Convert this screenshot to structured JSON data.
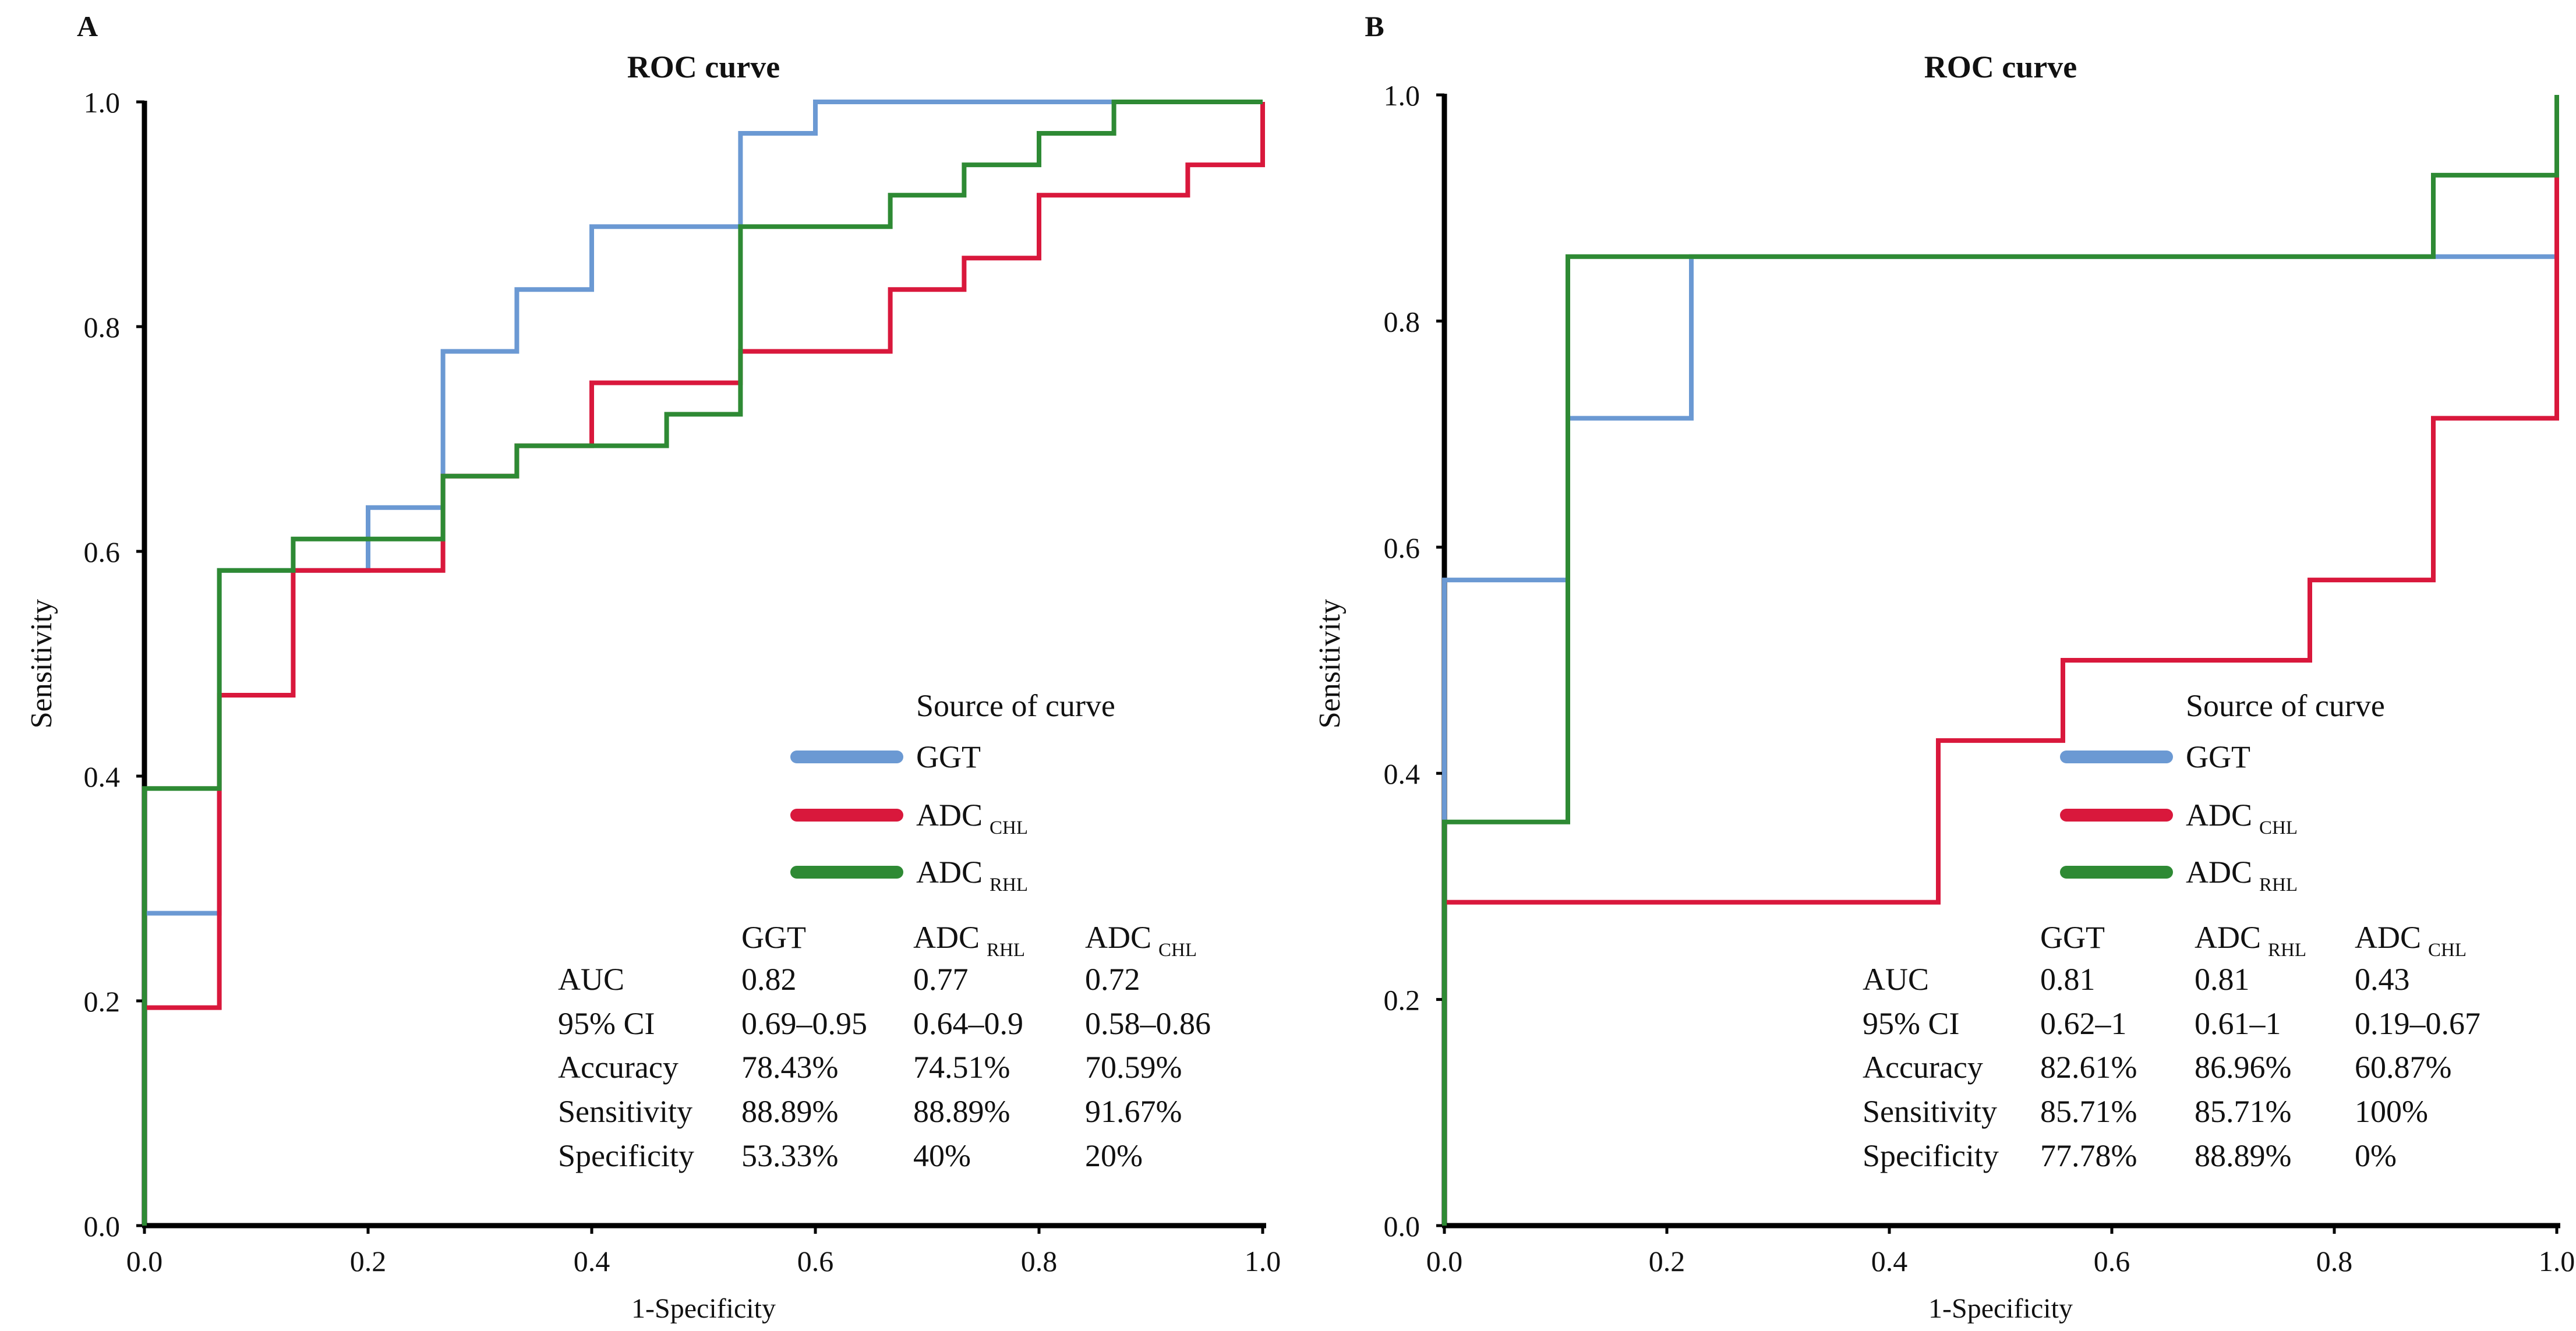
{
  "chart_data": [
    {
      "panel": "A",
      "type": "line",
      "title": "ROC curve",
      "xlabel": "1-Specificity",
      "ylabel": "Sensitivity",
      "xlim": [
        0,
        1
      ],
      "ylim": [
        0,
        1
      ],
      "xticks": [
        "0.0",
        "0.2",
        "0.4",
        "0.6",
        "0.8",
        "1.0"
      ],
      "yticks": [
        "0.0",
        "0.2",
        "0.4",
        "0.6",
        "0.8",
        "1.0"
      ],
      "legend_title": "Source of curve",
      "series": [
        {
          "name": "GGT",
          "sub": "",
          "color": "#6b99d3",
          "points": [
            [
              0,
              0
            ],
            [
              0,
              0.278
            ],
            [
              0.067,
              0.278
            ],
            [
              0.067,
              0.583
            ],
            [
              0.2,
              0.583
            ],
            [
              0.2,
              0.639
            ],
            [
              0.267,
              0.639
            ],
            [
              0.267,
              0.778
            ],
            [
              0.333,
              0.778
            ],
            [
              0.333,
              0.833
            ],
            [
              0.4,
              0.833
            ],
            [
              0.4,
              0.889
            ],
            [
              0.533,
              0.889
            ],
            [
              0.533,
              0.972
            ],
            [
              0.6,
              0.972
            ],
            [
              0.6,
              1
            ],
            [
              1,
              1
            ]
          ]
        },
        {
          "name": "ADC",
          "sub": "CHL",
          "color": "#d9183c",
          "points": [
            [
              0,
              0
            ],
            [
              0,
              0.194
            ],
            [
              0.067,
              0.194
            ],
            [
              0.067,
              0.472
            ],
            [
              0.133,
              0.472
            ],
            [
              0.133,
              0.583
            ],
            [
              0.267,
              0.583
            ],
            [
              0.267,
              0.667
            ],
            [
              0.333,
              0.667
            ],
            [
              0.333,
              0.694
            ],
            [
              0.4,
              0.694
            ],
            [
              0.4,
              0.75
            ],
            [
              0.533,
              0.75
            ],
            [
              0.533,
              0.778
            ],
            [
              0.667,
              0.778
            ],
            [
              0.667,
              0.833
            ],
            [
              0.733,
              0.833
            ],
            [
              0.733,
              0.861
            ],
            [
              0.8,
              0.861
            ],
            [
              0.8,
              0.917
            ],
            [
              0.933,
              0.917
            ],
            [
              0.933,
              0.944
            ],
            [
              1,
              0.944
            ],
            [
              1,
              1
            ]
          ]
        },
        {
          "name": "ADC",
          "sub": "RHL",
          "color": "#2e8a34",
          "points": [
            [
              0,
              0
            ],
            [
              0,
              0.389
            ],
            [
              0.067,
              0.389
            ],
            [
              0.067,
              0.583
            ],
            [
              0.133,
              0.583
            ],
            [
              0.133,
              0.611
            ],
            [
              0.267,
              0.611
            ],
            [
              0.267,
              0.667
            ],
            [
              0.333,
              0.667
            ],
            [
              0.333,
              0.694
            ],
            [
              0.467,
              0.694
            ],
            [
              0.467,
              0.722
            ],
            [
              0.533,
              0.722
            ],
            [
              0.533,
              0.889
            ],
            [
              0.667,
              0.889
            ],
            [
              0.667,
              0.917
            ],
            [
              0.733,
              0.917
            ],
            [
              0.733,
              0.944
            ],
            [
              0.8,
              0.944
            ],
            [
              0.8,
              0.972
            ],
            [
              0.867,
              0.972
            ],
            [
              0.867,
              1
            ],
            [
              1,
              1
            ]
          ]
        }
      ],
      "stats_table": {
        "headers": [
          {
            "name": "GGT",
            "sub": ""
          },
          {
            "name": "ADC",
            "sub": "RHL"
          },
          {
            "name": "ADC",
            "sub": "CHL"
          }
        ],
        "rows": [
          {
            "label": "AUC",
            "values": [
              "0.82",
              "0.77",
              "0.72"
            ]
          },
          {
            "label": "95% CI",
            "values": [
              "0.69–0.95",
              "0.64–0.9",
              "0.58–0.86"
            ]
          },
          {
            "label": "Accuracy",
            "values": [
              "78.43%",
              "74.51%",
              "70.59%"
            ]
          },
          {
            "label": "Sensitivity",
            "values": [
              "88.89%",
              "88.89%",
              "91.67%"
            ]
          },
          {
            "label": "Specificity",
            "values": [
              "53.33%",
              "40%",
              "20%"
            ]
          }
        ]
      }
    },
    {
      "panel": "B",
      "type": "line",
      "title": "ROC curve",
      "xlabel": "1-Specificity",
      "ylabel": "Sensitivity",
      "xlim": [
        0,
        1
      ],
      "ylim": [
        0,
        1
      ],
      "xticks": [
        "0.0",
        "0.2",
        "0.4",
        "0.6",
        "0.8",
        "1.0"
      ],
      "yticks": [
        "0.0",
        "0.2",
        "0.4",
        "0.6",
        "0.8",
        "1.0"
      ],
      "legend_title": "Source of curve",
      "series": [
        {
          "name": "GGT",
          "sub": "",
          "color": "#6b99d3",
          "points": [
            [
              0,
              0
            ],
            [
              0,
              0.571
            ],
            [
              0.111,
              0.571
            ],
            [
              0.111,
              0.714
            ],
            [
              0.222,
              0.714
            ],
            [
              0.222,
              0.857
            ],
            [
              1,
              0.857
            ]
          ]
        },
        {
          "name": "ADC",
          "sub": "CHL",
          "color": "#d9183c",
          "points": [
            [
              0,
              0
            ],
            [
              0,
              0.286
            ],
            [
              0.444,
              0.286
            ],
            [
              0.444,
              0.429
            ],
            [
              0.556,
              0.429
            ],
            [
              0.556,
              0.5
            ],
            [
              0.778,
              0.5
            ],
            [
              0.778,
              0.571
            ],
            [
              0.889,
              0.571
            ],
            [
              0.889,
              0.714
            ],
            [
              1,
              0.714
            ],
            [
              1,
              0.929
            ]
          ]
        },
        {
          "name": "ADC",
          "sub": "RHL",
          "color": "#2e8a34",
          "points": [
            [
              0,
              0
            ],
            [
              0,
              0.357
            ],
            [
              0.111,
              0.357
            ],
            [
              0.111,
              0.857
            ],
            [
              0.889,
              0.857
            ],
            [
              0.889,
              0.929
            ],
            [
              1,
              0.929
            ],
            [
              1,
              1
            ]
          ]
        }
      ],
      "stats_table": {
        "headers": [
          {
            "name": "GGT",
            "sub": ""
          },
          {
            "name": "ADC",
            "sub": "RHL"
          },
          {
            "name": "ADC",
            "sub": "CHL"
          }
        ],
        "rows": [
          {
            "label": "AUC",
            "values": [
              "0.81",
              "0.81",
              "0.43"
            ]
          },
          {
            "label": "95% CI",
            "values": [
              "0.62–1",
              "0.61–1",
              "0.19–0.67"
            ]
          },
          {
            "label": "Accuracy",
            "values": [
              "82.61%",
              "86.96%",
              "60.87%"
            ]
          },
          {
            "label": "Sensitivity",
            "values": [
              "85.71%",
              "85.71%",
              "100%"
            ]
          },
          {
            "label": "Specificity",
            "values": [
              "77.78%",
              "88.89%",
              "0%"
            ]
          }
        ]
      }
    }
  ]
}
